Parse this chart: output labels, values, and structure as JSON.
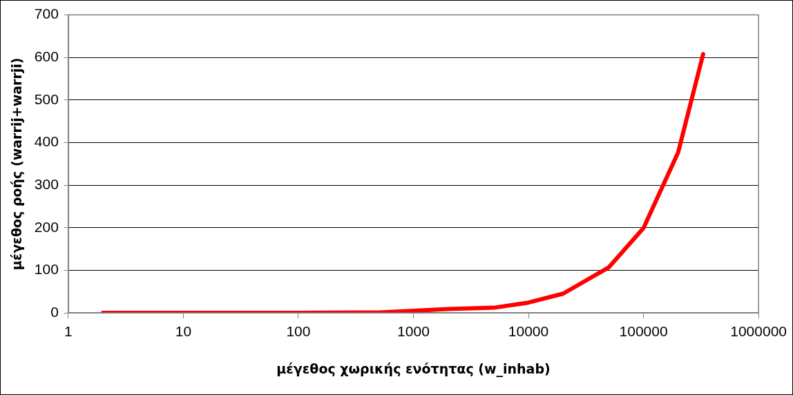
{
  "chart_data": {
    "type": "line",
    "xlabel": "μέγεθος χωρικής ενότητας (w_inhab)",
    "ylabel": "μέγεθος ροής (warrij+warrji)",
    "x": [
      2,
      5,
      10,
      50,
      100,
      500,
      1000,
      2000,
      5000,
      10000,
      20000,
      50000,
      100000,
      200000,
      330000
    ],
    "series": [
      {
        "color": "#ff0000",
        "values": [
          0,
          0,
          0,
          0,
          0,
          1,
          5,
          9,
          12,
          24,
          45,
          107,
          199,
          377,
          608
        ]
      }
    ],
    "log": "x",
    "xlim": [
      1,
      1000000
    ],
    "xticks": [
      1,
      10,
      100,
      1000,
      10000,
      100000,
      1000000
    ],
    "ylim": [
      0,
      700
    ],
    "yticks": [
      0,
      100,
      200,
      300,
      400,
      500,
      600,
      700
    ],
    "grid": "y",
    "legend": false,
    "marker": "none",
    "line_style": "solid"
  }
}
